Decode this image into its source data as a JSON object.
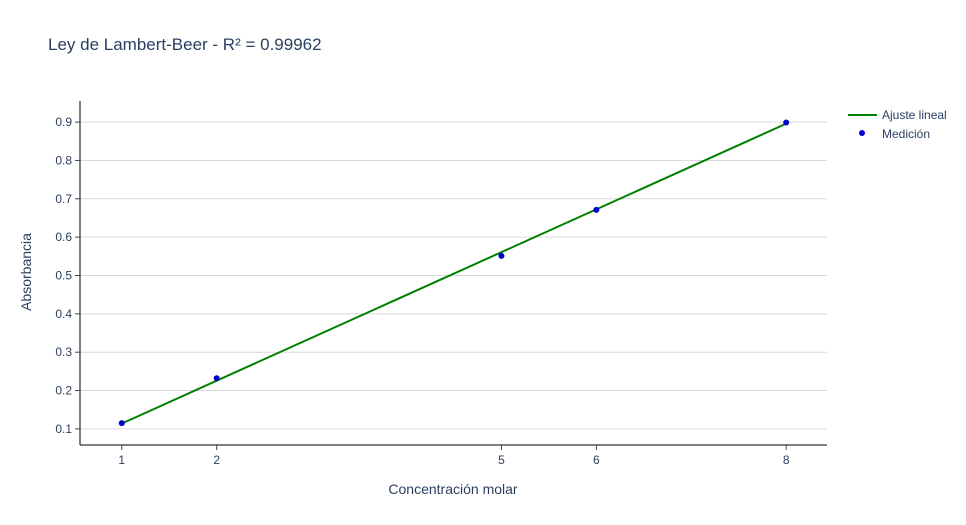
{
  "chart_data": {
    "type": "scatter",
    "title": "Ley de Lambert-Beer - R² = 0.99962",
    "xlabel": "Concentración molar",
    "ylabel": "Absorbancia",
    "x_ticks": [
      1,
      2,
      5,
      6,
      8
    ],
    "y_ticks": [
      "0.1",
      "0.2",
      "0.3",
      "0.4",
      "0.5",
      "0.6",
      "0.7",
      "0.8",
      "0.9"
    ],
    "xlim": [
      0.56,
      8.43
    ],
    "ylim": [
      0.058,
      0.955
    ],
    "grid": "horizontal",
    "legend_position": "top-right",
    "series": [
      {
        "name": "Ajuste lineal",
        "mode": "line",
        "color": "#008000",
        "x": [
          1,
          8
        ],
        "y": [
          0.114,
          0.896
        ]
      },
      {
        "name": "Medición",
        "mode": "markers",
        "color": "#0000cc",
        "x": [
          1,
          2,
          5,
          6,
          8
        ],
        "y": [
          0.115,
          0.232,
          0.551,
          0.671,
          0.899
        ]
      }
    ]
  }
}
